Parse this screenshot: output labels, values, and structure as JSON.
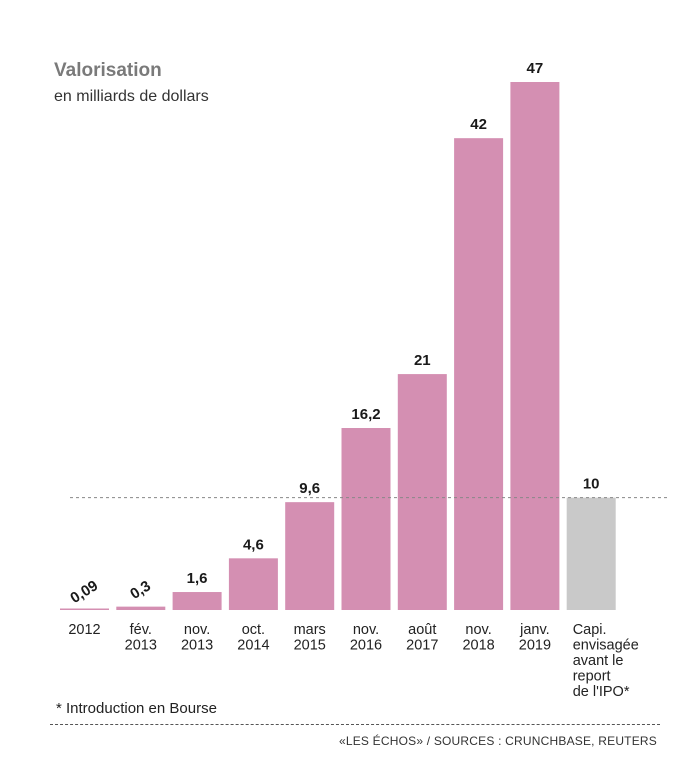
{
  "title": "Valorisation",
  "subtitle": "en milliards de dollars",
  "footnote": "* Introduction en Bourse",
  "source": "«LES ÉCHOS» / SOURCES : CRUNCHBASE, REUTERS",
  "colors": {
    "bar": "#d48fb2",
    "bar_estimate": "#c9c9c9",
    "reference_line": "#888888"
  },
  "chart_data": {
    "type": "bar",
    "title": "Valorisation",
    "subtitle": "en milliards de dollars",
    "xlabel": "",
    "ylabel": "",
    "ylim": [
      0,
      47
    ],
    "grid": false,
    "categories": [
      [
        "2012"
      ],
      [
        "fév.",
        "2013"
      ],
      [
        "nov.",
        "2013"
      ],
      [
        "oct.",
        "2014"
      ],
      [
        "mars",
        "2015"
      ],
      [
        "nov.",
        "2016"
      ],
      [
        "août",
        "2017"
      ],
      [
        "nov.",
        "2018"
      ],
      [
        "janv.",
        "2019"
      ],
      [
        "Capi.",
        "envisagée",
        "avant le",
        "report",
        "de l'IPO*"
      ]
    ],
    "values": [
      0.09,
      0.3,
      1.6,
      4.6,
      9.6,
      16.2,
      21,
      42,
      47,
      10
    ],
    "value_labels": [
      "0,09",
      "0,3",
      "1,6",
      "4,6",
      "9,6",
      "16,2",
      "21",
      "42",
      "47",
      "10"
    ],
    "estimate_index": 9,
    "reference_line_value": 10
  }
}
